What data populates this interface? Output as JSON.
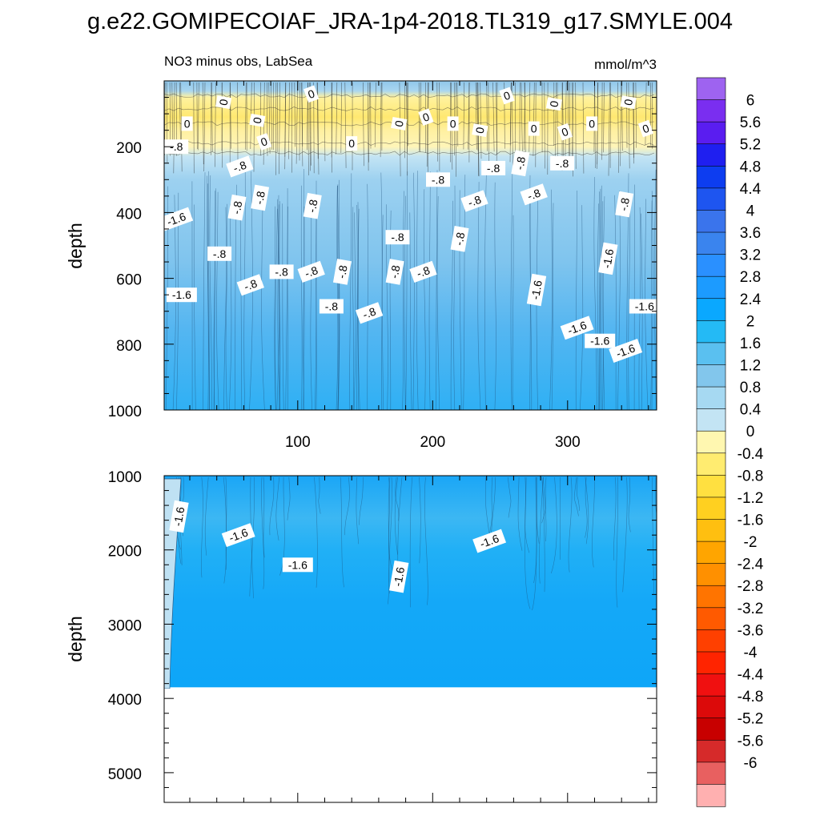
{
  "title": "g.e22.GOMIPECOIAF_JRA-1p4-2018.TL319_g17.SMYLE.004",
  "chart_data": [
    {
      "type": "heatmap",
      "panel": "upper",
      "subtitle_left": "NO3 minus obs, LabSea",
      "subtitle_right": "mmol/m^3",
      "ylabel": "depth",
      "xlabel": "",
      "xlim": [
        1,
        366
      ],
      "ylim": [
        1000,
        0
      ],
      "xticks": [
        "100",
        "200",
        "300"
      ],
      "yticks": [
        "200",
        "400",
        "600",
        "800",
        "1000"
      ],
      "contour_labels": [
        {
          "text": "0",
          "x": 45,
          "y": 65
        },
        {
          "text": "0",
          "x": 110,
          "y": 40
        },
        {
          "text": "0",
          "x": 18,
          "y": 130
        },
        {
          "text": "0",
          "x": 70,
          "y": 120
        },
        {
          "text": "0",
          "x": 75,
          "y": 185
        },
        {
          "text": "0",
          "x": 140,
          "y": 190
        },
        {
          "text": "0",
          "x": 175,
          "y": 130
        },
        {
          "text": "0",
          "x": 195,
          "y": 110
        },
        {
          "text": "0",
          "x": 215,
          "y": 130
        },
        {
          "text": "0",
          "x": 235,
          "y": 150
        },
        {
          "text": "0",
          "x": 255,
          "y": 45
        },
        {
          "text": "0",
          "x": 275,
          "y": 145
        },
        {
          "text": "0",
          "x": 290,
          "y": 70
        },
        {
          "text": "0",
          "x": 298,
          "y": 155
        },
        {
          "text": "0",
          "x": 318,
          "y": 130
        },
        {
          "text": "0",
          "x": 345,
          "y": 65
        },
        {
          "text": "0",
          "x": 358,
          "y": 145
        },
        {
          "text": "-.8",
          "x": 10,
          "y": 200
        },
        {
          "text": "-.8",
          "x": 55,
          "y": 385
        },
        {
          "text": "-.8",
          "x": 57,
          "y": 260
        },
        {
          "text": "-.8",
          "x": 42,
          "y": 525
        },
        {
          "text": "-.8",
          "x": 72,
          "y": 355
        },
        {
          "text": "-.8",
          "x": 65,
          "y": 620
        },
        {
          "text": "-.8",
          "x": 88,
          "y": 580
        },
        {
          "text": "-.8",
          "x": 111,
          "y": 380
        },
        {
          "text": "-.8",
          "x": 110,
          "y": 580
        },
        {
          "text": "-.8",
          "x": 125,
          "y": 685
        },
        {
          "text": "-.8",
          "x": 133,
          "y": 580
        },
        {
          "text": "-.8",
          "x": 153,
          "y": 705
        },
        {
          "text": "-.8",
          "x": 174,
          "y": 475
        },
        {
          "text": "-.8",
          "x": 172,
          "y": 580
        },
        {
          "text": "-.8",
          "x": 193,
          "y": 580
        },
        {
          "text": "-.8",
          "x": 204,
          "y": 300
        },
        {
          "text": "-.8",
          "x": 220,
          "y": 480
        },
        {
          "text": "-.8",
          "x": 231,
          "y": 365
        },
        {
          "text": "-.8",
          "x": 245,
          "y": 265
        },
        {
          "text": "-.8",
          "x": 265,
          "y": 250
        },
        {
          "text": "-.8",
          "x": 275,
          "y": 345
        },
        {
          "text": "-.8",
          "x": 296,
          "y": 250
        },
        {
          "text": "-.8",
          "x": 342,
          "y": 375
        },
        {
          "text": "-1.6",
          "x": 10,
          "y": 420
        },
        {
          "text": "-1.6",
          "x": 14,
          "y": 650
        },
        {
          "text": "-1.6",
          "x": 277,
          "y": 635
        },
        {
          "text": "-1.6",
          "x": 307,
          "y": 750
        },
        {
          "text": "-1.6",
          "x": 324,
          "y": 790
        },
        {
          "text": "-1.6",
          "x": 330,
          "y": 540
        },
        {
          "text": "-1.6",
          "x": 343,
          "y": 820
        },
        {
          "text": "-1.6",
          "x": 357,
          "y": 685
        }
      ]
    },
    {
      "type": "heatmap",
      "panel": "lower",
      "ylabel": "depth",
      "xlabel": "",
      "xlim": [
        1,
        366
      ],
      "ylim": [
        5400,
        1000
      ],
      "yticks": [
        "1000",
        "2000",
        "3000",
        "4000",
        "5000"
      ],
      "data_bottom_depth": 3850,
      "contour_labels": [
        {
          "text": "-1.6",
          "x": 12,
          "y": 1550
        },
        {
          "text": "-1.6",
          "x": 56,
          "y": 1800
        },
        {
          "text": "-1.6",
          "x": 100,
          "y": 2200
        },
        {
          "text": "-1.6",
          "x": 175,
          "y": 2360
        },
        {
          "text": "-1.6",
          "x": 242,
          "y": 1880
        }
      ]
    }
  ],
  "colorbar": {
    "colors": [
      "#9e63f0",
      "#7a2ef0",
      "#5a1df0",
      "#1f1ff0",
      "#0d3df0",
      "#1e55f0",
      "#3a74ec",
      "#3a84ee",
      "#2a90ff",
      "#1c9bff",
      "#0aa8ff",
      "#24baf5",
      "#5ac0f0",
      "#82c6ec",
      "#a6d9f2",
      "#c3e4f4",
      "#fff7b0",
      "#ffec70",
      "#ffe040",
      "#ffd020",
      "#ffbf10",
      "#ffa500",
      "#ff9000",
      "#ff7400",
      "#ff5a00",
      "#ff4000",
      "#ff2400",
      "#f01010",
      "#dc0a0a",
      "#c80000",
      "#d62a2a",
      "#e86060",
      "#ffb0b0"
    ],
    "labels": [
      "6",
      "5.6",
      "5.2",
      "4.8",
      "4.4",
      "4",
      "3.6",
      "3.2",
      "2.8",
      "2.4",
      "2",
      "1.6",
      "1.2",
      "0.8",
      "0.4",
      "0",
      "-0.4",
      "-0.8",
      "-1.2",
      "-1.6",
      "-2",
      "-2.4",
      "-2.8",
      "-3.2",
      "-3.6",
      "-4",
      "-4.4",
      "-4.8",
      "-5.2",
      "-5.6",
      "-6"
    ]
  }
}
